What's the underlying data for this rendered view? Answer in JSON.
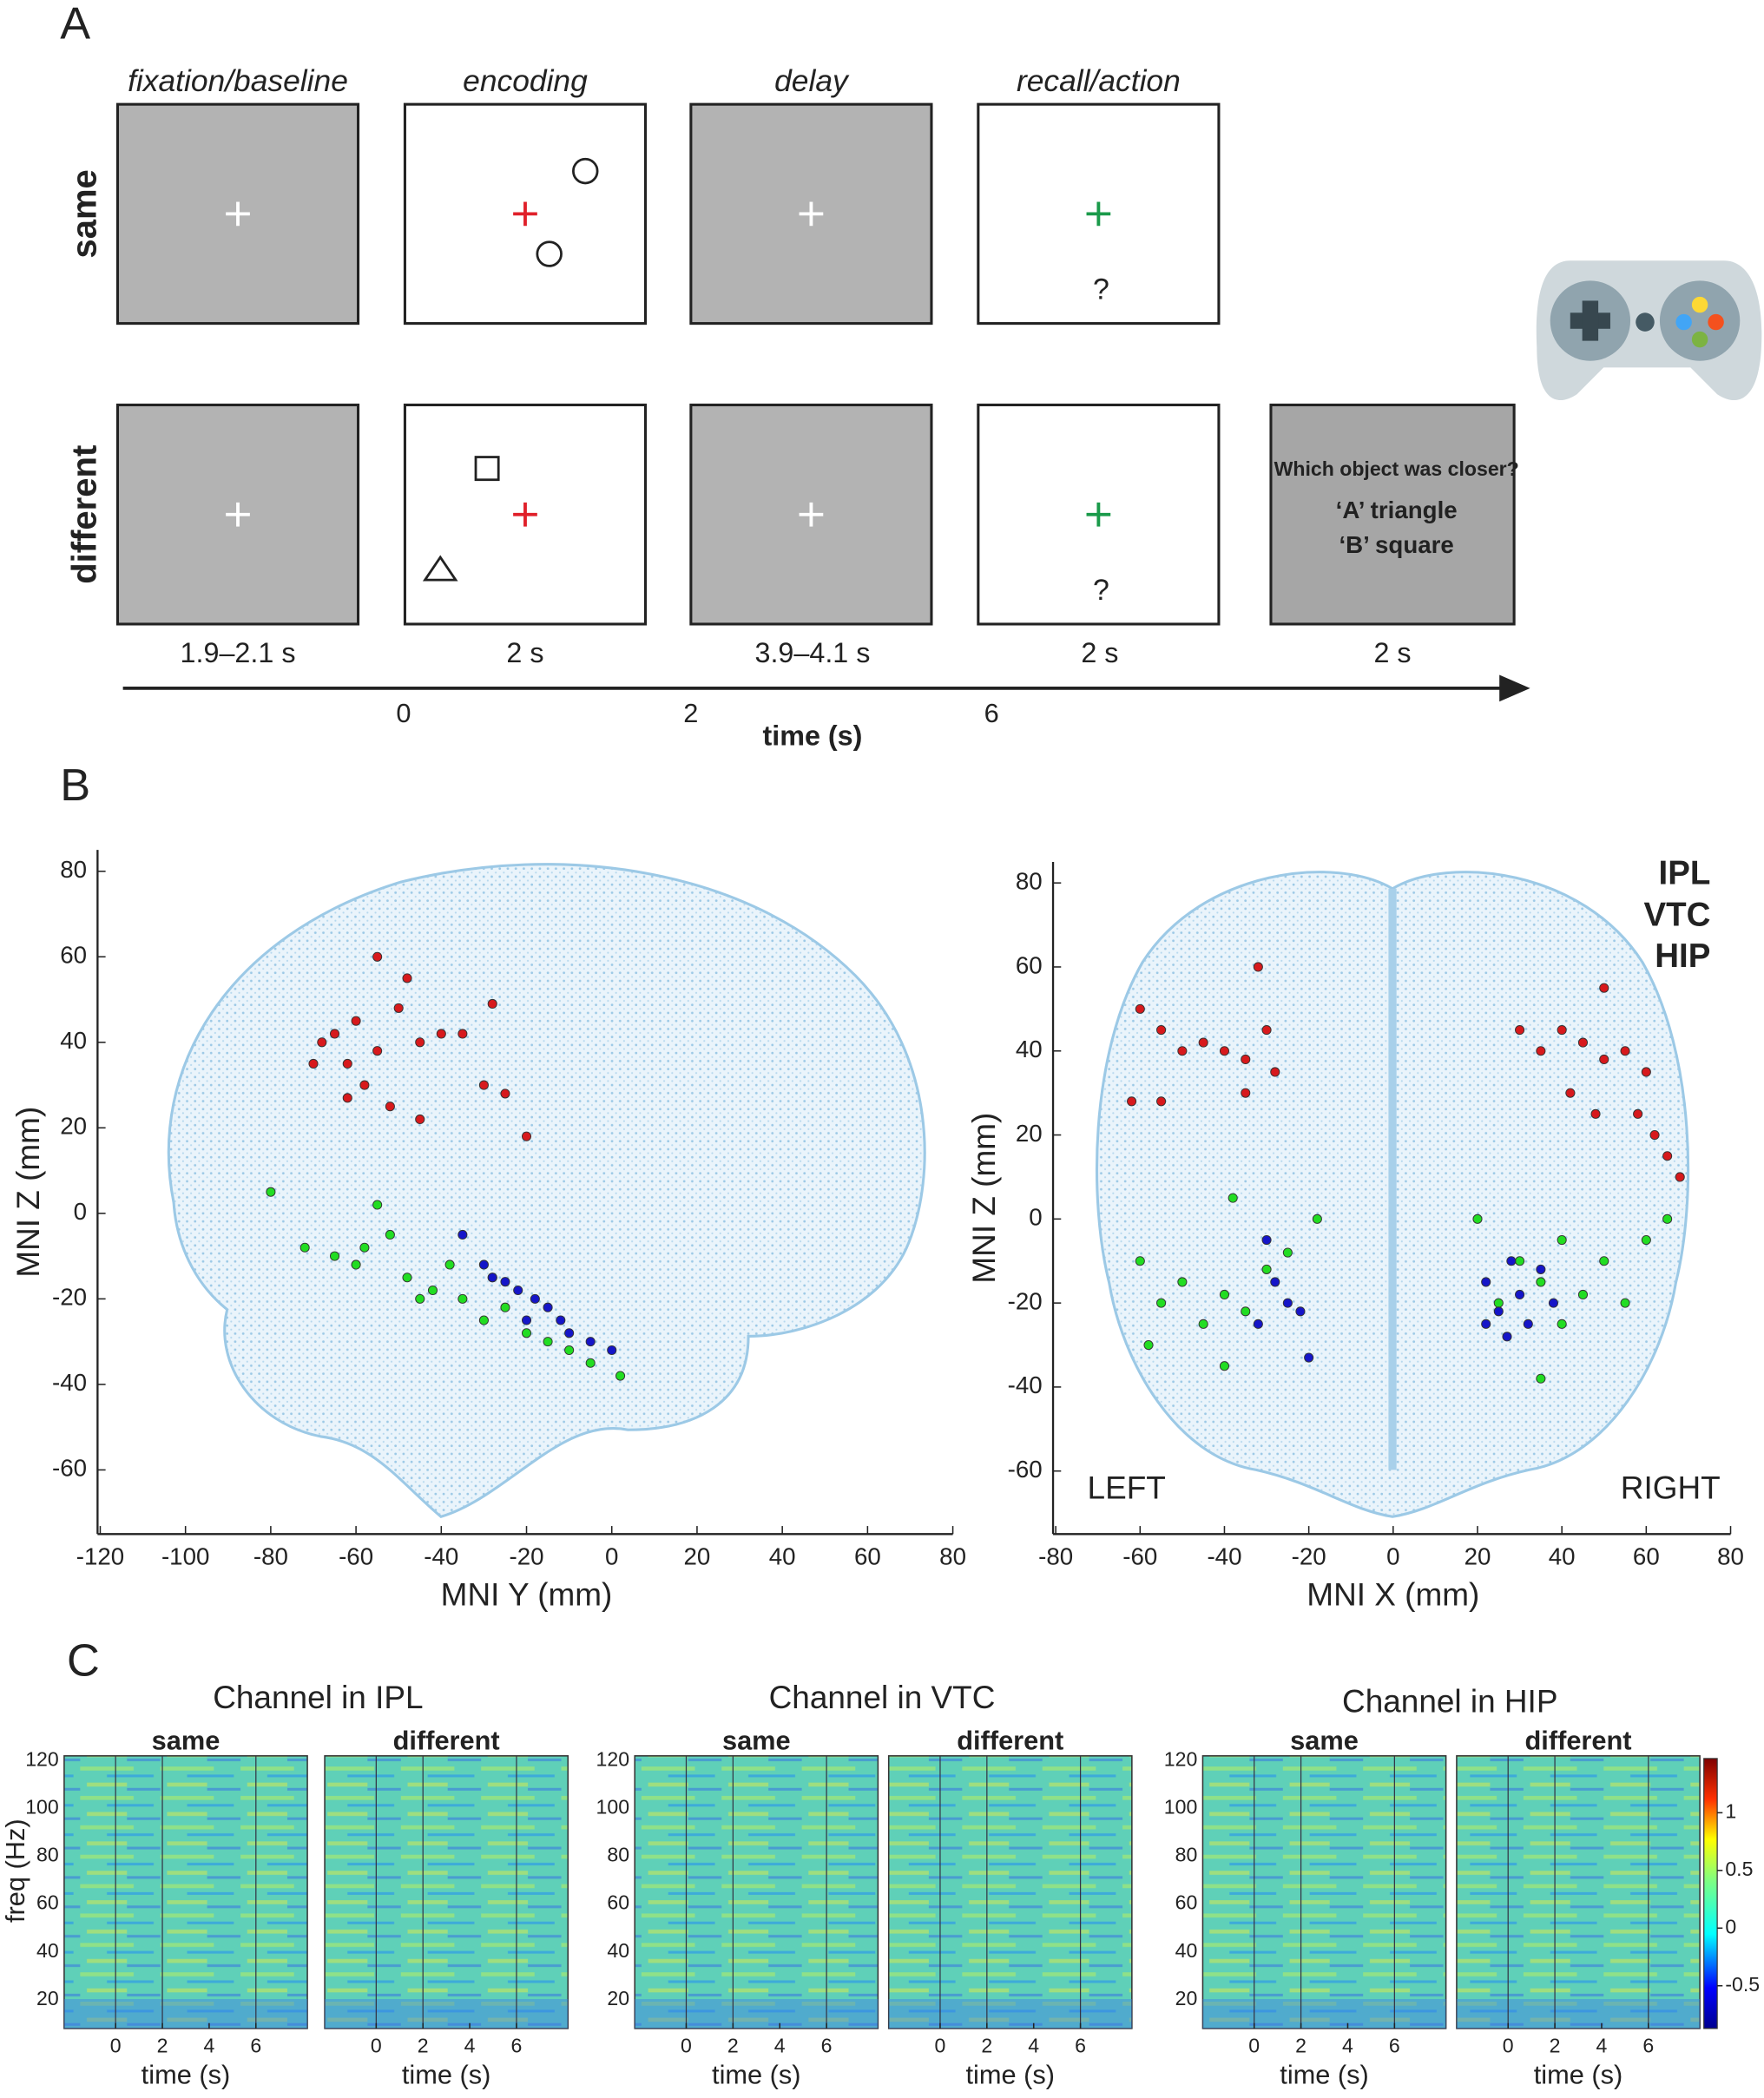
{
  "panel_labels": [
    "A",
    "B",
    "C"
  ],
  "task": {
    "phases": [
      "fixation/baseline",
      "encoding",
      "delay",
      "recall/action"
    ],
    "conditions": [
      {
        "name": "same",
        "color": "#e0202a"
      },
      {
        "name": "different",
        "color": "#1a1adb"
      }
    ],
    "question": {
      "title": "Which object was closer?",
      "options": [
        "‘A’  triangle",
        "‘B’  square"
      ]
    },
    "durations": [
      "1.9–2.1 s",
      "2 s",
      "3.9–4.1 s",
      "2 s",
      "2 s"
    ],
    "recall_prompt": "?",
    "time_axis": {
      "label": "time (s)",
      "ticks": [
        0,
        2,
        6
      ]
    }
  },
  "chart_data": [
    {
      "type": "scatter",
      "xlabel": "MNI Y (mm)",
      "ylabel": "MNI Z (mm)",
      "xlim": [
        -120,
        80
      ],
      "ylim": [
        -75,
        85
      ],
      "xticks": [
        -120,
        -100,
        -80,
        -60,
        -40,
        -20,
        0,
        20,
        40,
        60,
        80
      ],
      "yticks": [
        -60,
        -40,
        -20,
        0,
        20,
        40,
        60,
        80
      ],
      "series": [
        {
          "name": "IPL",
          "color": "#d7191c",
          "x": [
            -60,
            -55,
            -65,
            -50,
            -45,
            -58,
            -62,
            -40,
            -52,
            -48,
            -68,
            -30,
            -25,
            -20,
            -28,
            -35,
            -55,
            -70,
            -62,
            -45
          ],
          "values": [
            45,
            38,
            42,
            48,
            40,
            30,
            35,
            42,
            25,
            55,
            40,
            30,
            28,
            18,
            49,
            42,
            60,
            35,
            27,
            22
          ]
        },
        {
          "name": "VTC",
          "color": "#22dd22",
          "x": [
            -80,
            -72,
            -65,
            -58,
            -52,
            -55,
            -48,
            -42,
            -38,
            -35,
            -30,
            -25,
            -20,
            -15,
            -10,
            -5,
            2,
            -28,
            -45,
            -60
          ],
          "values": [
            5,
            -8,
            -10,
            -8,
            -5,
            2,
            -15,
            -18,
            -12,
            -20,
            -25,
            -22,
            -28,
            -30,
            -32,
            -35,
            -38,
            -15,
            -20,
            -12
          ]
        },
        {
          "name": "HIP",
          "color": "#1515c8",
          "x": [
            -35,
            -30,
            -28,
            -25,
            -22,
            -18,
            -15,
            -20,
            -10,
            -5,
            0,
            -12
          ],
          "values": [
            -5,
            -12,
            -15,
            -16,
            -18,
            -20,
            -22,
            -25,
            -28,
            -30,
            -32,
            -25
          ]
        }
      ]
    },
    {
      "type": "scatter",
      "xlabel": "MNI X (mm)",
      "ylabel": "MNI Z (mm)",
      "xlim": [
        -80,
        80
      ],
      "ylim": [
        -75,
        85
      ],
      "xticks": [
        -80,
        -60,
        -40,
        -20,
        0,
        20,
        40,
        60,
        80
      ],
      "yticks": [
        -60,
        -40,
        -20,
        0,
        20,
        40,
        60,
        80
      ],
      "annotations": [
        "LEFT",
        "RIGHT"
      ],
      "legend": "upper right",
      "series": [
        {
          "name": "IPL",
          "color": "#d7191c",
          "x": [
            -60,
            -55,
            -50,
            -45,
            -40,
            -35,
            -32,
            -30,
            -28,
            -62,
            -55,
            -35,
            35,
            40,
            45,
            50,
            55,
            60,
            42,
            48,
            58,
            62,
            65,
            68,
            50,
            30
          ],
          "values": [
            50,
            45,
            40,
            42,
            40,
            38,
            60,
            45,
            35,
            28,
            28,
            30,
            40,
            45,
            42,
            38,
            40,
            35,
            30,
            25,
            25,
            20,
            15,
            10,
            55,
            45
          ]
        },
        {
          "name": "VTC",
          "color": "#22dd22",
          "x": [
            -60,
            -55,
            -50,
            -45,
            -40,
            -35,
            -30,
            -25,
            -38,
            -58,
            -40,
            25,
            30,
            35,
            40,
            45,
            50,
            55,
            60,
            65,
            40,
            35,
            20,
            -18
          ],
          "values": [
            -10,
            -20,
            -15,
            -25,
            -18,
            -22,
            -12,
            -8,
            5,
            -30,
            -35,
            -20,
            -10,
            -15,
            -5,
            -18,
            -10,
            -20,
            -5,
            0,
            -25,
            -38,
            0,
            0
          ]
        },
        {
          "name": "HIP",
          "color": "#1515c8",
          "x": [
            -30,
            -28,
            -25,
            -22,
            -32,
            -20,
            22,
            25,
            28,
            30,
            32,
            35,
            38,
            22,
            27
          ],
          "values": [
            -5,
            -15,
            -20,
            -22,
            -25,
            -33,
            -15,
            -22,
            -10,
            -18,
            -25,
            -12,
            -20,
            -25,
            -28
          ]
        }
      ]
    },
    {
      "type": "heatmap",
      "title": "Channel in IPL",
      "xlabel": "time (s)",
      "ylabel": "freq (Hz)",
      "panels": [
        "same",
        "different"
      ],
      "xlim": [
        -2.2,
        8.2
      ],
      "ylim": [
        8,
        122
      ],
      "xticks": [
        0,
        2,
        4,
        6
      ],
      "yticks": [
        20,
        40,
        60,
        80,
        100,
        120
      ],
      "event_lines": [
        0,
        2,
        6
      ]
    },
    {
      "type": "heatmap",
      "title": "Channel in VTC",
      "xlabel": "time (s)",
      "panels": [
        "same",
        "different"
      ],
      "xlim": [
        -2.2,
        8.2
      ],
      "ylim": [
        8,
        122
      ],
      "xticks": [
        0,
        2,
        4,
        6
      ],
      "yticks": [
        20,
        40,
        60,
        80,
        100,
        120
      ],
      "event_lines": [
        0,
        2,
        6
      ]
    },
    {
      "type": "heatmap",
      "title": "Channel in HIP",
      "xlabel": "time (s)",
      "panels": [
        "same",
        "different"
      ],
      "xlim": [
        -2.2,
        8.2
      ],
      "ylim": [
        8,
        122
      ],
      "xticks": [
        0,
        2,
        4,
        6
      ],
      "yticks": [
        20,
        40,
        60,
        80,
        100,
        120
      ],
      "event_lines": [
        0,
        2,
        6
      ],
      "colorbar": {
        "clim": [
          -0.87,
          1.47
        ],
        "ticks": [
          -0.5,
          0,
          0.5,
          1
        ]
      }
    }
  ]
}
